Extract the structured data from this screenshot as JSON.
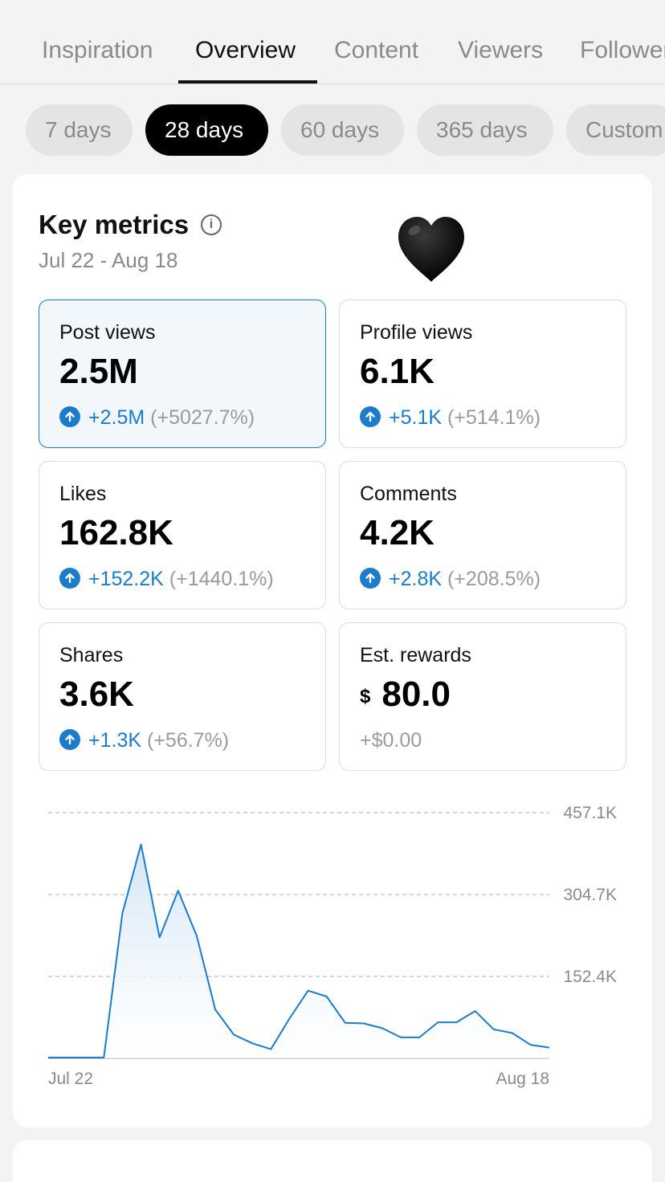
{
  "tabs": [
    {
      "label": "Inspiration"
    },
    {
      "label": "Overview",
      "active": true
    },
    {
      "label": "Content"
    },
    {
      "label": "Viewers"
    },
    {
      "label": "Followers"
    }
  ],
  "date_ranges": [
    {
      "label": "7 days"
    },
    {
      "label": "28 days",
      "active": true
    },
    {
      "label": "60 days"
    },
    {
      "label": "365 days"
    },
    {
      "label": "Custom"
    }
  ],
  "key_metrics": {
    "title": "Key metrics",
    "info_icon": "info-icon",
    "date_range": "Jul 22 - Aug 18",
    "decoration": "black-heart-emoji"
  },
  "metrics": [
    {
      "label": "Post views",
      "value": "2.5M",
      "delta": "+2.5M",
      "pct": "(+5027.7%)",
      "selected": true
    },
    {
      "label": "Profile views",
      "value": "6.1K",
      "delta": "+5.1K",
      "pct": "(+514.1%)"
    },
    {
      "label": "Likes",
      "value": "162.8K",
      "delta": "+152.2K",
      "pct": "(+1440.1%)"
    },
    {
      "label": "Comments",
      "value": "4.2K",
      "delta": "+2.8K",
      "pct": "(+208.5%)"
    },
    {
      "label": "Shares",
      "value": "3.6K",
      "delta": "+1.3K",
      "pct": "(+56.7%)"
    },
    {
      "label": "Est. rewards",
      "currency": "$",
      "value": "80.0",
      "change": "+$0.00"
    }
  ],
  "colors": {
    "accent": "#1b7cc9",
    "line": "#1b7cc9",
    "fill_top": "#d3e6f6",
    "muted": "#8a8a8a"
  },
  "chart_data": {
    "type": "area",
    "x_start_label": "Jul 22",
    "x_end_label": "Aug 18",
    "y_ticks": [
      {
        "value": 152400,
        "label": "152.4K"
      },
      {
        "value": 304700,
        "label": "304.7K"
      },
      {
        "value": 457100,
        "label": "457.1K"
      }
    ],
    "ylim": [
      0,
      457100
    ],
    "grid": true,
    "series": [
      {
        "values": [
          1500,
          1500,
          1500,
          1500,
          270000,
          398000,
          225000,
          312000,
          228000,
          91000,
          44000,
          28000,
          17000,
          74000,
          126000,
          115000,
          66000,
          65000,
          56000,
          39000,
          39000,
          67000,
          67000,
          88000,
          54000,
          47000,
          25000,
          20000
        ]
      }
    ]
  }
}
